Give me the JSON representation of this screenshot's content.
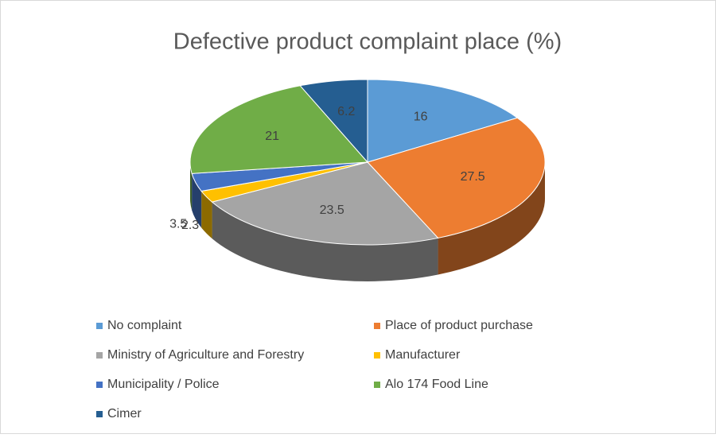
{
  "chart_data": {
    "type": "pie3d",
    "title": "Defective product complaint place (%)",
    "categories": [
      "No complaint",
      "Place of product purchase",
      "Ministry of Agriculture and Forestry",
      "Manufacturer",
      "Municipality / Police",
      "Alo 174 Food Line",
      "Cimer"
    ],
    "values": [
      16,
      27.5,
      23.5,
      2.3,
      3.5,
      21,
      6.2
    ],
    "colors": [
      "#5b9bd5",
      "#ed7d31",
      "#a5a5a5",
      "#ffc000",
      "#4472c4",
      "#70ad47",
      "#255e91"
    ],
    "legend": "bottom"
  }
}
